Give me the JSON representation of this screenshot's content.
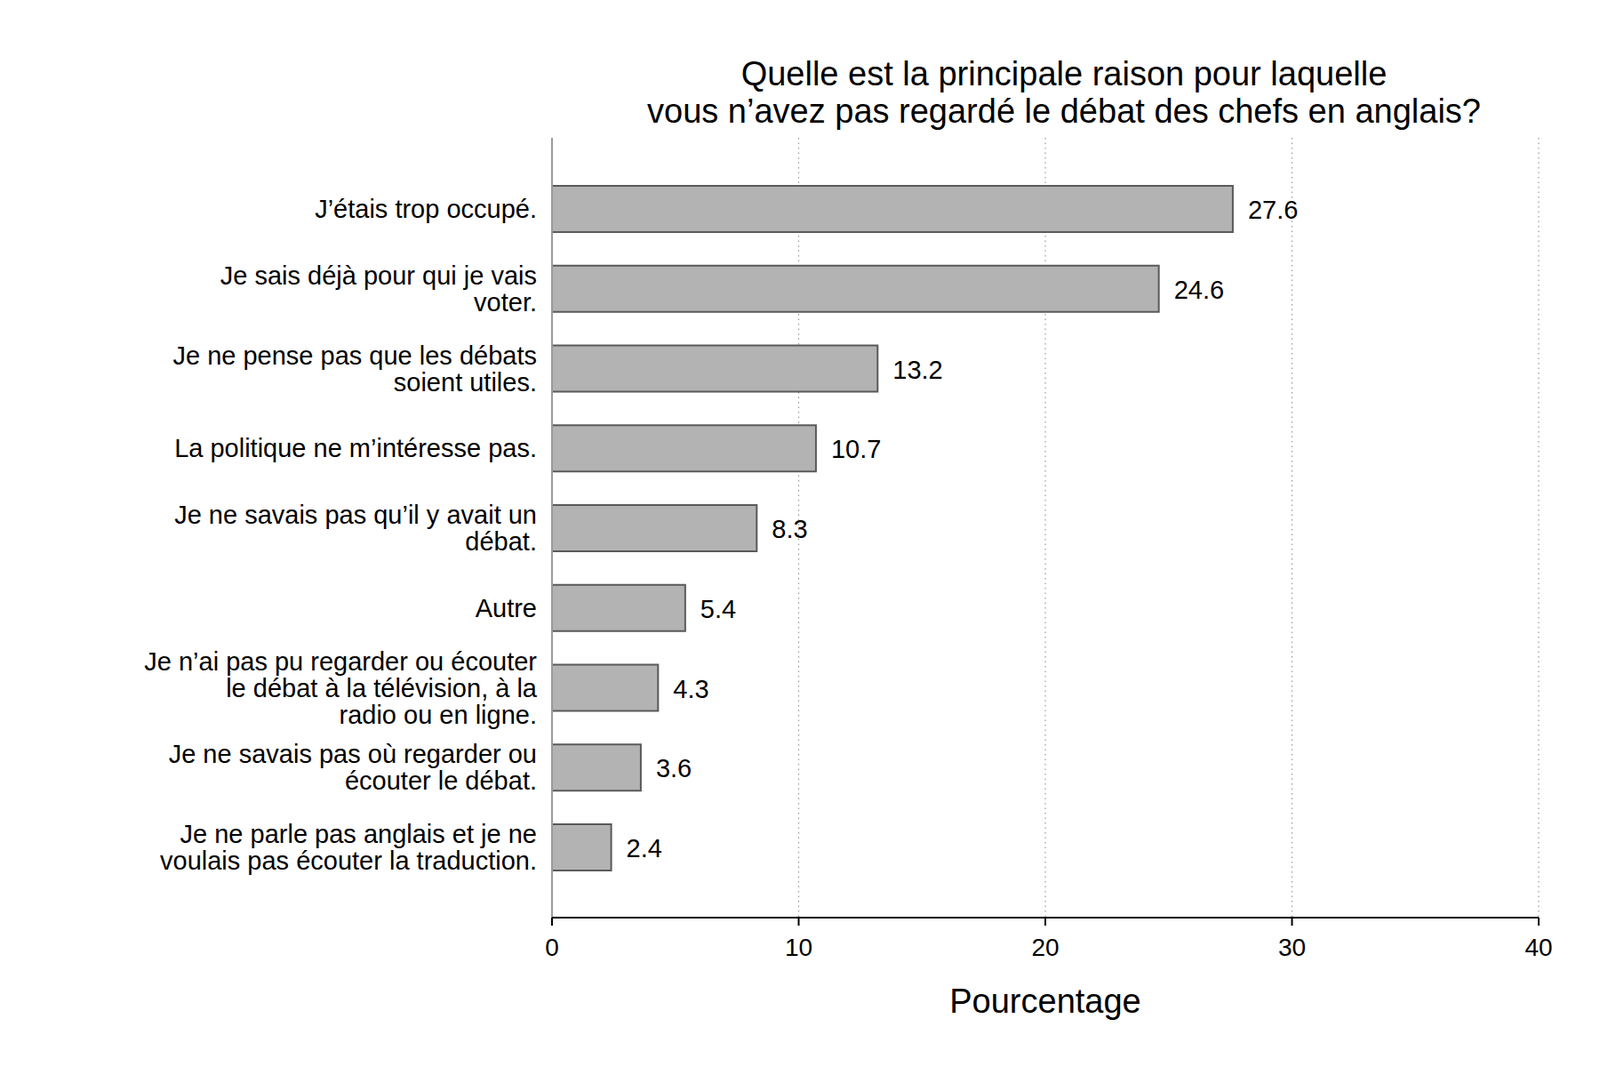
{
  "chart_data": {
    "type": "bar",
    "orientation": "horizontal",
    "title": "Quelle est la principale raison pour laquelle vous n’avez pas regardé le débat des chefs en anglais?",
    "x_label": "Pourcentage",
    "categories": [
      "J’étais trop occupé.",
      "Je sais déjà pour qui je vais voter.",
      "Je ne pense pas que les débats soient utiles.",
      "La politique ne m’intéresse pas.",
      "Je ne savais pas qu’il y avait un débat.",
      "Autre",
      "Je n’ai pas pu regarder ou écouter le débat à la télévision, à la radio ou en ligne.",
      "Je ne savais pas où regarder ou écouter le débat.",
      "Je ne parle pas anglais et je ne voulais pas écouter la traduction."
    ],
    "values": [
      27.6,
      24.6,
      13.2,
      10.7,
      8.3,
      5.4,
      4.3,
      3.6,
      2.4
    ],
    "color": "#b3b3b3",
    "xlim": [
      0,
      40
    ],
    "xticks": [
      0,
      10,
      20,
      30,
      40
    ],
    "grid": true,
    "data_labels": true
  }
}
